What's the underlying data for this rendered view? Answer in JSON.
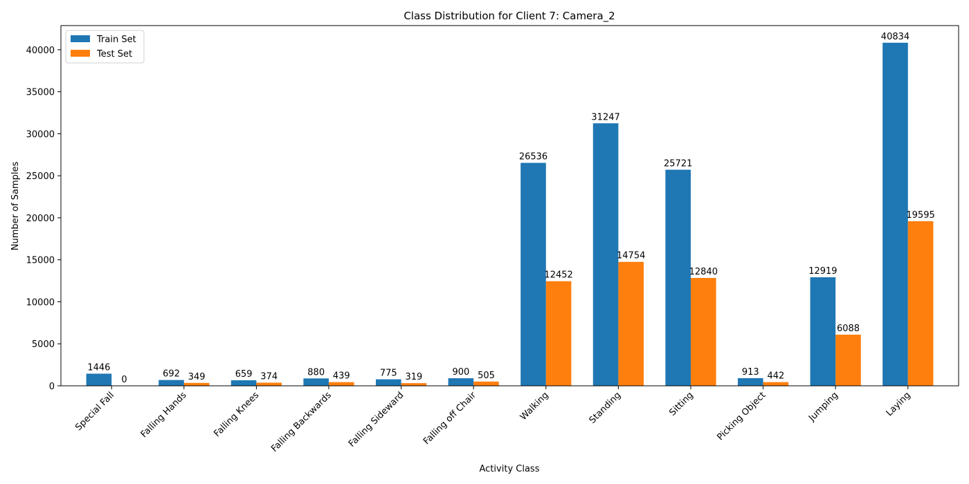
{
  "chart_data": {
    "type": "bar",
    "title": "Class Distribution for Client 7: Camera_2",
    "xlabel": "Activity Class",
    "ylabel": "Number of Samples",
    "categories": [
      "Special Fall",
      "Falling Hands",
      "Falling Knees",
      "Falling Backwards",
      "Falling Sideward",
      "Falling off Chair",
      "Walking",
      "Standing",
      "Sitting",
      "Picking Object",
      "Jumping",
      "Laying"
    ],
    "series": [
      {
        "name": "Train Set",
        "color": "#1f77b4",
        "values": [
          1446,
          692,
          659,
          880,
          775,
          900,
          26536,
          31247,
          25721,
          913,
          12919,
          40834
        ]
      },
      {
        "name": "Test Set",
        "color": "#ff7f0e",
        "values": [
          0,
          349,
          374,
          439,
          319,
          505,
          12452,
          14754,
          12840,
          442,
          6088,
          19595
        ]
      }
    ],
    "yticks": [
      0,
      5000,
      10000,
      15000,
      20000,
      25000,
      30000,
      35000,
      40000
    ],
    "ylim": [
      0,
      42875
    ],
    "legend": "top-left",
    "grid": false
  }
}
